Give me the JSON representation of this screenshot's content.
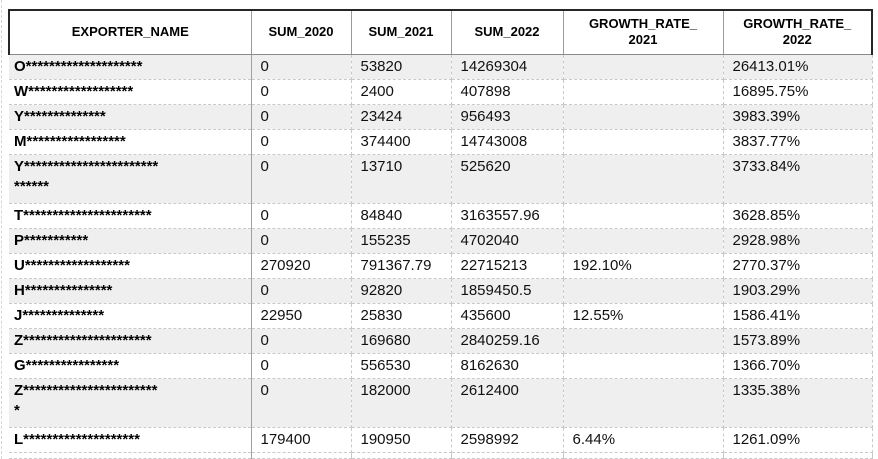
{
  "colors": {
    "stripe_gray": "#efefef",
    "header_border_dark": "#262626",
    "grid_mid": "#9b9b9b",
    "grid_light": "#c9c9c9",
    "text": "#000000"
  },
  "table": {
    "columns": [
      {
        "id": "exporter",
        "line1": "EXPORTER_NAME",
        "line2": ""
      },
      {
        "id": "sum_2020",
        "line1": "SUM_2020",
        "line2": ""
      },
      {
        "id": "sum_2021",
        "line1": "SUM_2021",
        "line2": ""
      },
      {
        "id": "sum_2022",
        "line1": "SUM_2022",
        "line2": ""
      },
      {
        "id": "gr_2021",
        "line1": "GROWTH_RATE_",
        "line2": "2021"
      },
      {
        "id": "gr_2022",
        "line1": "GROWTH_RATE_",
        "line2": "2022"
      }
    ],
    "rows": [
      {
        "exporter": "O********************",
        "exporter_line2": "",
        "sum_2020": "0",
        "sum_2021": "53820",
        "sum_2022": "14269304",
        "gr_2021": "",
        "gr_2022": "26413.01%"
      },
      {
        "exporter": "W******************",
        "exporter_line2": "",
        "sum_2020": "0",
        "sum_2021": "2400",
        "sum_2022": "407898",
        "gr_2021": "",
        "gr_2022": "16895.75%"
      },
      {
        "exporter": "Y**************",
        "exporter_line2": "",
        "sum_2020": "0",
        "sum_2021": "23424",
        "sum_2022": "956493",
        "gr_2021": "",
        "gr_2022": "3983.39%"
      },
      {
        "exporter": "M*****************",
        "exporter_line2": "",
        "sum_2020": "0",
        "sum_2021": "374400",
        "sum_2022": "14743008",
        "gr_2021": "",
        "gr_2022": "3837.77%"
      },
      {
        "exporter": "Y***********************",
        "exporter_line2": "******",
        "sum_2020": "0",
        "sum_2021": "13710",
        "sum_2022": "525620",
        "gr_2021": "",
        "gr_2022": "3733.84%"
      },
      {
        "exporter": "T**********************",
        "exporter_line2": "",
        "sum_2020": "0",
        "sum_2021": "84840",
        "sum_2022": "3163557.96",
        "gr_2021": "",
        "gr_2022": "3628.85%"
      },
      {
        "exporter": "P***********",
        "exporter_line2": "",
        "sum_2020": "0",
        "sum_2021": "155235",
        "sum_2022": "4702040",
        "gr_2021": "",
        "gr_2022": "2928.98%"
      },
      {
        "exporter": "U******************",
        "exporter_line2": "",
        "sum_2020": "270920",
        "sum_2021": "791367.79",
        "sum_2022": "22715213",
        "gr_2021": "192.10%",
        "gr_2022": "2770.37%"
      },
      {
        "exporter": "H***************",
        "exporter_line2": "",
        "sum_2020": "0",
        "sum_2021": "92820",
        "sum_2022": "1859450.5",
        "gr_2021": "",
        "gr_2022": "1903.29%"
      },
      {
        "exporter": "J**************",
        "exporter_line2": "",
        "sum_2020": "22950",
        "sum_2021": "25830",
        "sum_2022": "435600",
        "gr_2021": "12.55%",
        "gr_2022": "1586.41%"
      },
      {
        "exporter": "Z**********************",
        "exporter_line2": "",
        "sum_2020": "0",
        "sum_2021": "169680",
        "sum_2022": "2840259.16",
        "gr_2021": "",
        "gr_2022": "1573.89%"
      },
      {
        "exporter": "G****************",
        "exporter_line2": "",
        "sum_2020": "0",
        "sum_2021": "556530",
        "sum_2022": "8162630",
        "gr_2021": "",
        "gr_2022": "1366.70%"
      },
      {
        "exporter": "Z***********************",
        "exporter_line2": "*",
        "sum_2020": "0",
        "sum_2021": "182000",
        "sum_2022": "2612400",
        "gr_2021": "",
        "gr_2022": "1335.38%"
      },
      {
        "exporter": "L********************",
        "exporter_line2": "",
        "sum_2020": "179400",
        "sum_2021": "190950",
        "sum_2022": "2598992",
        "gr_2021": "6.44%",
        "gr_2022": "1261.09%"
      }
    ]
  }
}
